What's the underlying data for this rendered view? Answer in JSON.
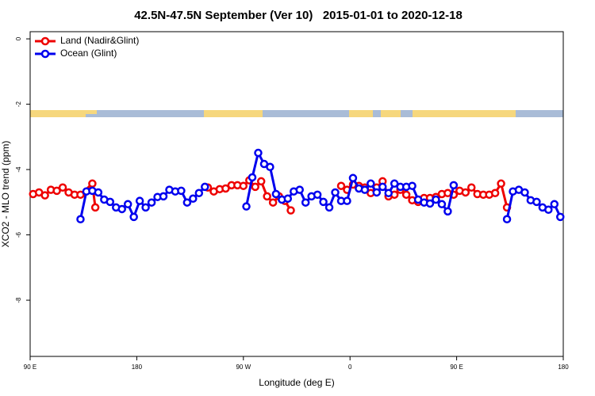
{
  "chart_data": {
    "type": "line",
    "title": "42.5N-47.5N September (Ver 10)   2015-01-01 to 2020-12-18",
    "xlabel": "Longitude (deg E)",
    "ylabel": "XCO2 - MLO trend (ppm)",
    "xlim": [
      90,
      540
    ],
    "ylim": [
      -9.72,
      0.22
    ],
    "xticks": [
      {
        "value": 90,
        "label": "90 E"
      },
      180,
      {
        "value": 270,
        "label": "90 W"
      },
      {
        "value": 360,
        "label": "0"
      },
      {
        "value": 450,
        "label": "90 E"
      },
      {
        "value": 540,
        "label": "180"
      }
    ],
    "yticks": [
      0,
      -2,
      -4,
      -6,
      -8
    ],
    "legend": "top-left",
    "series": [
      {
        "name": "Land (Nadir&Glint)",
        "color": "#ee0000",
        "x": [
          92.5,
          97.5,
          102.5,
          107.5,
          112.5,
          117.5,
          122.5,
          127.5,
          132.5,
          142.5,
          145,
          null,
          240,
          245,
          250,
          255,
          260,
          265,
          270,
          275,
          280,
          285,
          290,
          295,
          300,
          305,
          310,
          null,
          352.5,
          357.5,
          362.5,
          367.5,
          372.5,
          377.5,
          382.5,
          387.5,
          392.5,
          397.5,
          402.5,
          407.5,
          412.5,
          417.5,
          422.5,
          427.5,
          432.5,
          437.5,
          442.5,
          447.5,
          452.5,
          457.5,
          462.5,
          467.5,
          472.5,
          477.5,
          482.5,
          487.5,
          492.5
        ],
        "values": [
          -4.75,
          -4.7,
          -4.79,
          -4.62,
          -4.65,
          -4.55,
          -4.7,
          -4.77,
          -4.77,
          -4.43,
          -5.16,
          null,
          -4.55,
          -4.67,
          -4.6,
          -4.58,
          -4.48,
          -4.48,
          -4.5,
          -4.33,
          -4.53,
          -4.36,
          -4.82,
          -5.01,
          -4.82,
          -4.96,
          -5.25,
          null,
          -4.5,
          -4.62,
          -4.46,
          -4.5,
          -4.55,
          -4.72,
          -4.55,
          -4.36,
          -4.82,
          -4.77,
          -4.62,
          -4.77,
          -4.94,
          -4.99,
          -4.87,
          -4.87,
          -4.84,
          -4.75,
          -4.72,
          -4.77,
          -4.65,
          -4.7,
          -4.55,
          -4.75,
          -4.77,
          -4.77,
          -4.72,
          -4.43,
          -5.16
        ]
      },
      {
        "name": "Ocean (Glint)",
        "color": "#0000ee",
        "x": [
          132.5,
          137.5,
          142.5,
          147.5,
          152.5,
          157.5,
          162.5,
          167.5,
          172.5,
          177.5,
          182.5,
          187.5,
          192.5,
          197.5,
          202.5,
          207.5,
          212.5,
          217.5,
          222.5,
          227.5,
          232.5,
          237.5,
          null,
          272.5,
          277.5,
          282.5,
          287.5,
          292.5,
          297.5,
          302.5,
          307.5,
          312.5,
          317.5,
          322.5,
          327.5,
          332.5,
          337.5,
          342.5,
          347.5,
          352.5,
          357.5,
          362.5,
          367.5,
          372.5,
          377.5,
          382.5,
          387.5,
          392.5,
          397.5,
          402.5,
          407.5,
          412.5,
          417.5,
          422.5,
          427.5,
          432.5,
          437.5,
          442.5,
          447.5,
          null,
          492.5,
          497.5,
          502.5,
          507.5,
          512.5,
          517.5,
          522.5,
          527.5,
          532.5,
          537.5
        ],
        "values": [
          -5.52,
          -4.67,
          -4.65,
          -4.7,
          -4.92,
          -4.99,
          -5.16,
          -5.21,
          -5.06,
          -5.45,
          -4.96,
          -5.16,
          -5.01,
          -4.84,
          -4.82,
          -4.62,
          -4.67,
          -4.65,
          -5.01,
          -4.89,
          -4.72,
          -4.53,
          null,
          -5.13,
          -4.24,
          -3.49,
          -3.83,
          -3.92,
          -4.75,
          -4.92,
          -4.89,
          -4.67,
          -4.62,
          -5.01,
          -4.82,
          -4.77,
          -4.99,
          -5.16,
          -4.7,
          -4.96,
          -4.96,
          -4.26,
          -4.58,
          -4.62,
          -4.43,
          -4.7,
          -4.53,
          -4.72,
          -4.43,
          -4.53,
          -4.53,
          -4.5,
          -4.92,
          -5.01,
          -5.04,
          -4.92,
          -5.06,
          -5.28,
          -4.48,
          null,
          -5.52,
          -4.67,
          -4.62,
          -4.7,
          -4.94,
          -4.99,
          -5.16,
          -5.23,
          -5.06,
          -5.45
        ]
      }
    ]
  }
}
